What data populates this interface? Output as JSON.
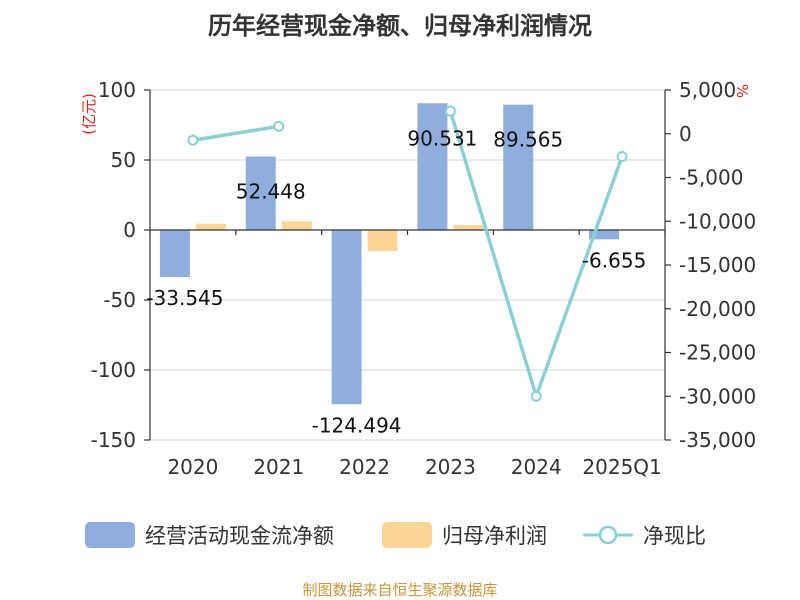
{
  "chart_data": {
    "type": "bar",
    "title": "历年经营现金净额、归母净利润情况",
    "unit_left": "(亿元)",
    "unit_right": "%",
    "categories": [
      "2020",
      "2021",
      "2022",
      "2023",
      "2024",
      "2025Q1"
    ],
    "series": [
      {
        "name": "经营活动现金流净额",
        "type": "bar",
        "axis": "left",
        "values": [
          -33.545,
          52.448,
          -124.494,
          90.531,
          89.565,
          -6.655
        ],
        "labels": [
          "-33.545",
          "52.448",
          "-124.494",
          "90.531",
          "89.565",
          "-6.655"
        ],
        "color": "#8faede"
      },
      {
        "name": "归母净利润",
        "type": "bar",
        "axis": "left",
        "values": [
          4.5,
          6.2,
          -15.0,
          3.5,
          0.4,
          0.3
        ],
        "color": "#fdd596"
      },
      {
        "name": "净现比",
        "type": "line",
        "axis": "right",
        "values": [
          -745,
          845,
          null,
          2587,
          -30000,
          -2600
        ],
        "color": "#89d1d4"
      }
    ],
    "y_left": {
      "min": -150,
      "max": 100,
      "ticks": [
        "100",
        "50",
        "0",
        "-50",
        "-100",
        "-150"
      ]
    },
    "y_right": {
      "min": -35000,
      "max": 5000,
      "ticks": [
        "5,000",
        "0",
        "-5,000",
        "-10,000",
        "-15,000",
        "-20,000",
        "-25,000",
        "-30,000",
        "-35,000"
      ]
    },
    "grid": true,
    "legend_position": "bottom",
    "source": "制图数据来自恒生聚源数据库"
  }
}
